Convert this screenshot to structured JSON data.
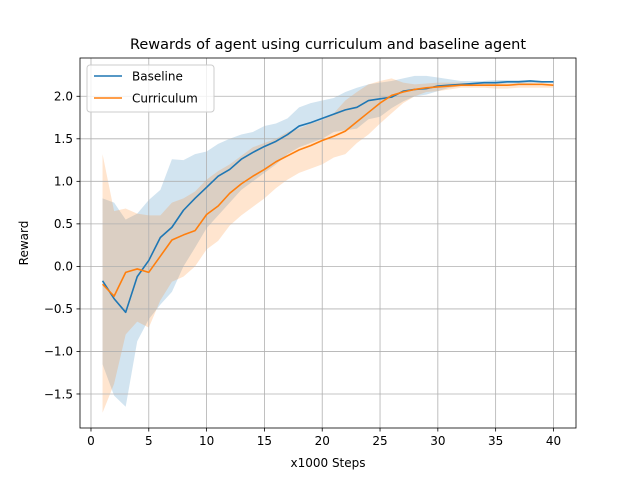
{
  "chart_data": {
    "type": "line",
    "title": "Rewards of agent using curriculum and baseline agent",
    "xlabel": "x1000 Steps",
    "ylabel": "Reward",
    "xlim": [
      -0.95,
      41.95
    ],
    "ylim": [
      -1.9,
      2.45
    ],
    "xticks": [
      0,
      5,
      10,
      15,
      20,
      25,
      30,
      35,
      40
    ],
    "yticks": [
      -1.5,
      -1.0,
      -0.5,
      0.0,
      0.5,
      1.0,
      1.5,
      2.0
    ],
    "ytick_labels": [
      "−1.5",
      "−1.0",
      "−0.5",
      "0.0",
      "0.5",
      "1.0",
      "1.5",
      "2.0"
    ],
    "grid": true,
    "legend_position": "top-left",
    "x": [
      1,
      2,
      3,
      4,
      5,
      6,
      7,
      8,
      9,
      10,
      11,
      12,
      13,
      14,
      15,
      16,
      17,
      18,
      19,
      20,
      21,
      22,
      23,
      24,
      25,
      26,
      27,
      28,
      29,
      30,
      31,
      32,
      33,
      34,
      35,
      36,
      37,
      38,
      39,
      40
    ],
    "series": [
      {
        "name": "Baseline",
        "color": "#1f77b4",
        "values": [
          -0.17,
          -0.38,
          -0.54,
          -0.12,
          0.07,
          0.34,
          0.46,
          0.66,
          0.8,
          0.93,
          1.06,
          1.14,
          1.26,
          1.34,
          1.41,
          1.47,
          1.55,
          1.65,
          1.69,
          1.74,
          1.79,
          1.84,
          1.87,
          1.95,
          1.97,
          1.99,
          2.06,
          2.08,
          2.09,
          2.12,
          2.13,
          2.14,
          2.15,
          2.16,
          2.16,
          2.17,
          2.17,
          2.18,
          2.17,
          2.17
        ],
        "upper": [
          0.8,
          0.75,
          0.55,
          0.62,
          0.78,
          0.9,
          1.26,
          1.25,
          1.32,
          1.35,
          1.44,
          1.5,
          1.55,
          1.58,
          1.65,
          1.68,
          1.74,
          1.87,
          1.92,
          1.95,
          1.98,
          2.05,
          2.1,
          2.14,
          2.16,
          2.18,
          2.21,
          2.24,
          2.24,
          2.22,
          2.2,
          2.18,
          2.18,
          2.18,
          2.19,
          2.19,
          2.19,
          2.19,
          2.18,
          2.18
        ],
        "lower": [
          -1.15,
          -1.52,
          -1.65,
          -0.88,
          -0.62,
          -0.45,
          -0.3,
          0.0,
          0.22,
          0.45,
          0.6,
          0.75,
          0.9,
          1.0,
          1.1,
          1.2,
          1.32,
          1.4,
          1.45,
          1.5,
          1.58,
          1.6,
          1.62,
          1.73,
          1.76,
          1.86,
          1.94,
          2.0,
          2.02,
          2.06,
          2.1,
          2.12,
          2.12,
          2.14,
          2.14,
          2.15,
          2.15,
          2.15,
          2.16,
          2.16
        ]
      },
      {
        "name": "Curriculum",
        "color": "#ff7f0e",
        "values": [
          -0.21,
          -0.35,
          -0.07,
          -0.03,
          -0.07,
          0.12,
          0.31,
          0.37,
          0.42,
          0.61,
          0.71,
          0.86,
          0.97,
          1.06,
          1.14,
          1.23,
          1.3,
          1.37,
          1.42,
          1.48,
          1.53,
          1.59,
          1.7,
          1.81,
          1.92,
          2.01,
          2.05,
          2.08,
          2.1,
          2.11,
          2.12,
          2.13,
          2.13,
          2.13,
          2.13,
          2.13,
          2.14,
          2.14,
          2.14,
          2.13
        ],
        "upper": [
          1.32,
          0.65,
          0.68,
          0.62,
          0.6,
          0.6,
          0.75,
          0.8,
          0.88,
          1.02,
          1.12,
          1.2,
          1.3,
          1.4,
          1.45,
          1.5,
          1.58,
          1.62,
          1.68,
          1.72,
          1.8,
          1.95,
          2.05,
          2.14,
          2.18,
          2.21,
          2.16,
          2.14,
          2.15,
          2.16,
          2.16,
          2.16,
          2.15,
          2.16,
          2.16,
          2.15,
          2.16,
          2.16,
          2.16,
          2.15
        ],
        "lower": [
          -1.72,
          -1.38,
          -0.8,
          -0.65,
          -0.72,
          -0.4,
          -0.18,
          -0.12,
          0.0,
          0.2,
          0.3,
          0.48,
          0.6,
          0.7,
          0.8,
          0.92,
          1.02,
          1.1,
          1.15,
          1.2,
          1.28,
          1.32,
          1.45,
          1.55,
          1.68,
          1.8,
          1.92,
          2.0,
          2.05,
          2.06,
          2.08,
          2.1,
          2.1,
          2.1,
          2.09,
          2.09,
          2.1,
          2.1,
          2.1,
          2.1
        ]
      }
    ]
  }
}
